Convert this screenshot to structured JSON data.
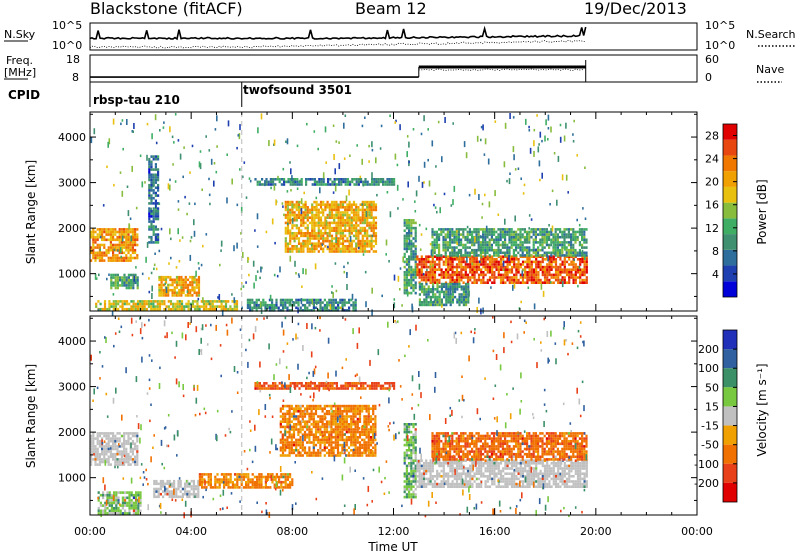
{
  "header": {
    "station": "Blackstone (fitACF)",
    "beam": "Beam 12",
    "date": "19/Dec/2013"
  },
  "status_panels": {
    "nsky_label": "N.Sky",
    "nsky_ticks": [
      "10^5",
      "10^0"
    ],
    "nsearch_label": "N.Search",
    "freq_label_1": "Freq.",
    "freq_label_2": "[MHz]",
    "freq_ticks": [
      "18",
      "8"
    ],
    "nave_label": "Nave",
    "nave_ticks": [
      "60",
      "0"
    ],
    "cpid_label": "CPID",
    "programs": [
      {
        "name": "rbsp-tau 210",
        "start_hour": 0
      },
      {
        "name": "twofsound 3501",
        "start_hour": 6
      }
    ],
    "freq_mhz": [
      {
        "from": 0,
        "to": 13.0,
        "value": 10.2
      },
      {
        "from": 13.0,
        "to": 19.6,
        "value": 15.8
      }
    ]
  },
  "chart_data": [
    {
      "type": "heatmap",
      "name": "power",
      "xlabel": "",
      "ylabel": "Slant Range [km]",
      "x_range_hours": [
        0,
        24
      ],
      "ylim": [
        180,
        4550
      ],
      "y_ticks": [
        1000,
        2000,
        3000,
        4000
      ],
      "colorbar": {
        "label": "Power [dB]",
        "ticks": [
          4,
          8,
          12,
          16,
          20,
          24,
          28
        ],
        "range": [
          0,
          30
        ],
        "colors": [
          "#0000d8",
          "#1e3fb0",
          "#2e6e9c",
          "#3f9070",
          "#3fae64",
          "#88bc3c",
          "#e8c010",
          "#f0a000",
          "#f07800",
          "#e84810",
          "#e00000"
        ]
      },
      "regions": [
        {
          "x0": 0.0,
          "x1": 1.9,
          "y0": 1300,
          "y1": 2000,
          "v": 21
        },
        {
          "x0": 0.8,
          "x1": 1.9,
          "y0": 700,
          "y1": 1000,
          "v": 12
        },
        {
          "x0": 2.3,
          "x1": 2.7,
          "y0": 1700,
          "y1": 3600,
          "v": 7
        },
        {
          "x0": 2.7,
          "x1": 4.3,
          "y0": 550,
          "y1": 950,
          "v": 20
        },
        {
          "x0": 0.2,
          "x1": 5.8,
          "y0": 200,
          "y1": 420,
          "v": 17
        },
        {
          "x0": 6.2,
          "x1": 10.5,
          "y0": 180,
          "y1": 450,
          "v": 9
        },
        {
          "x0": 7.7,
          "x1": 11.3,
          "y0": 1500,
          "y1": 2600,
          "v": 20
        },
        {
          "x0": 6.5,
          "x1": 12.0,
          "y0": 2950,
          "y1": 3100,
          "v": 9
        },
        {
          "x0": 12.4,
          "x1": 12.9,
          "y0": 600,
          "y1": 2200,
          "v": 11
        },
        {
          "x0": 12.9,
          "x1": 19.6,
          "y0": 800,
          "y1": 1400,
          "v": 25
        },
        {
          "x0": 13.5,
          "x1": 19.6,
          "y0": 1400,
          "y1": 2000,
          "v": 11
        },
        {
          "x0": 13.0,
          "x1": 15.0,
          "y0": 300,
          "y1": 800,
          "v": 10
        }
      ]
    },
    {
      "type": "heatmap",
      "name": "velocity",
      "xlabel": "Time UT",
      "ylabel": "Slant Range [km]",
      "x_range_hours": [
        0,
        24
      ],
      "x_ticks": [
        "00:00",
        "04:00",
        "08:00",
        "12:00",
        "16:00",
        "20:00",
        "00:00"
      ],
      "ylim": [
        180,
        4550
      ],
      "y_ticks": [
        1000,
        2000,
        3000,
        4000
      ],
      "colorbar": {
        "label": "Velocity [m s⁻¹]",
        "ticks": [
          200,
          100,
          50,
          15,
          -15,
          -50,
          -100,
          -200
        ],
        "colors": [
          "#2030b8",
          "#3060a0",
          "#3c9068",
          "#78c840",
          "#c0c0c0",
          "#f0a000",
          "#f07000",
          "#e84018",
          "#e00000"
        ]
      },
      "regions": [
        {
          "x0": 0.0,
          "x1": 1.9,
          "y0": 1300,
          "y1": 2000,
          "v": 0
        },
        {
          "x0": 0.3,
          "x1": 2.0,
          "y0": 200,
          "y1": 700,
          "v": 30
        },
        {
          "x0": 2.5,
          "x1": 4.3,
          "y0": 600,
          "y1": 950,
          "v": 0
        },
        {
          "x0": 4.3,
          "x1": 8.0,
          "y0": 800,
          "y1": 1100,
          "v": -60
        },
        {
          "x0": 7.5,
          "x1": 11.3,
          "y0": 1500,
          "y1": 2600,
          "v": -60
        },
        {
          "x0": 6.5,
          "x1": 12.0,
          "y0": 2950,
          "y1": 3100,
          "v": -110
        },
        {
          "x0": 12.4,
          "x1": 12.9,
          "y0": 600,
          "y1": 2200,
          "v": 40
        },
        {
          "x0": 12.9,
          "x1": 19.6,
          "y0": 800,
          "y1": 1400,
          "v": 0
        },
        {
          "x0": 13.5,
          "x1": 19.6,
          "y0": 1400,
          "y1": 2000,
          "v": -80
        }
      ]
    }
  ]
}
